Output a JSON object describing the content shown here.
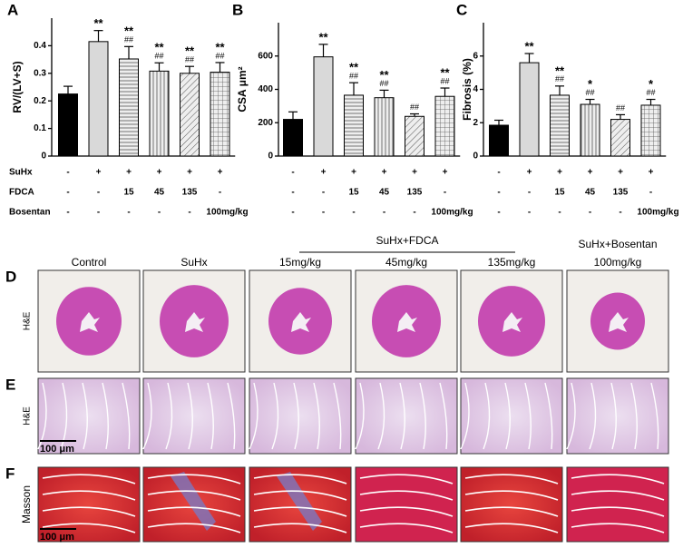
{
  "chart_data": [
    {
      "type": "bar",
      "panel": "A",
      "ylabel": "RV/(LV+S)",
      "values": [
        0.225,
        0.415,
        0.352,
        0.308,
        0.3,
        0.304
      ],
      "errors": [
        0.028,
        0.04,
        0.045,
        0.03,
        0.025,
        0.035
      ],
      "fills": [
        "#000000",
        "#d9d9d9",
        "horizontal",
        "vertical",
        "diagonal",
        "grid"
      ],
      "ylim": [
        0,
        0.5
      ],
      "yticks": [
        0,
        0.1,
        0.2,
        0.3,
        0.4
      ],
      "stars": [
        null,
        "**",
        "**",
        "**",
        "**",
        "**"
      ],
      "hashes": [
        null,
        null,
        "##",
        "##",
        "##",
        "##"
      ],
      "rows": [
        {
          "name": "SuHx",
          "values": [
            "-",
            "+",
            "+",
            "+",
            "+",
            "+"
          ]
        },
        {
          "name": "FDCA",
          "values": [
            "-",
            "-",
            "15",
            "45",
            "135",
            "-"
          ]
        },
        {
          "name": "Bosentan",
          "values": [
            "-",
            "-",
            "-",
            "-",
            "-",
            "100mg/kg"
          ]
        }
      ]
    },
    {
      "type": "bar",
      "panel": "B",
      "ylabel": "CSA μm²",
      "values": [
        220,
        595,
        365,
        350,
        238,
        358
      ],
      "errors": [
        45,
        75,
        75,
        45,
        15,
        50
      ],
      "fills": [
        "#000000",
        "#d9d9d9",
        "horizontal",
        "vertical",
        "diagonal",
        "grid"
      ],
      "ylim": [
        0,
        800
      ],
      "yticks": [
        0,
        200,
        400,
        600
      ],
      "stars": [
        null,
        "**",
        "**",
        "**",
        null,
        "**"
      ],
      "hashes": [
        null,
        null,
        "##",
        "##",
        "##",
        "##"
      ],
      "rows": [
        {
          "values": [
            "-",
            "+",
            "+",
            "+",
            "+",
            "+"
          ]
        },
        {
          "values": [
            "-",
            "-",
            "15",
            "45",
            "135",
            "-"
          ]
        },
        {
          "values": [
            "-",
            "-",
            "-",
            "-",
            "-",
            "100mg/kg"
          ]
        }
      ]
    },
    {
      "type": "bar",
      "panel": "C",
      "ylabel": "Fibrosis (%)",
      "values": [
        1.85,
        5.6,
        3.65,
        3.1,
        2.2,
        3.05
      ],
      "errors": [
        0.3,
        0.55,
        0.55,
        0.3,
        0.28,
        0.35
      ],
      "fills": [
        "#000000",
        "#d9d9d9",
        "horizontal",
        "vertical",
        "diagonal",
        "grid"
      ],
      "ylim": [
        0,
        8
      ],
      "yticks": [
        0,
        2,
        4,
        6
      ],
      "stars": [
        null,
        "**",
        "**",
        "*",
        null,
        "*"
      ],
      "hashes": [
        null,
        null,
        "##",
        "##",
        "##",
        "##"
      ],
      "rows": [
        {
          "values": [
            "-",
            "+",
            "+",
            "+",
            "+",
            "+"
          ]
        },
        {
          "values": [
            "-",
            "-",
            "15",
            "45",
            "135",
            "-"
          ]
        },
        {
          "values": [
            "-",
            "-",
            "-",
            "-",
            "-",
            "100mg/kg"
          ]
        }
      ]
    }
  ],
  "histology": {
    "group_headers": [
      "SuHx+FDCA",
      "SuHx+Bosentan"
    ],
    "columns": [
      "Control",
      "SuHx",
      "15mg/kg",
      "45mg/kg",
      "135mg/kg",
      "100mg/kg"
    ],
    "rows": [
      {
        "label": "D",
        "stain": "H&E"
      },
      {
        "label": "E",
        "stain": "H&E"
      },
      {
        "label": "F",
        "stain": "Masson"
      }
    ],
    "scale_bar": "100 μm"
  }
}
